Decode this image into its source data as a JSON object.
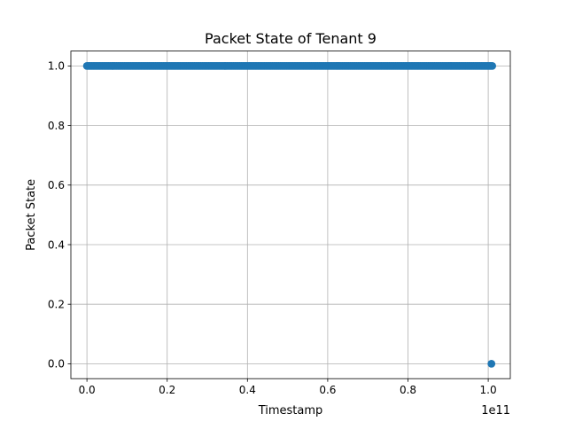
{
  "chart_data": {
    "type": "scatter",
    "title": "Packet State of Tenant 9",
    "xlabel": "Timestamp",
    "ylabel": "Packet State",
    "x_offset_label": "1e11",
    "x_scale": 100000000000,
    "xlim": [
      -4000000000,
      105500000000
    ],
    "ylim": [
      -0.05,
      1.05
    ],
    "x_ticks": [
      0,
      20000000000,
      40000000000,
      60000000000,
      80000000000,
      100000000000
    ],
    "x_tick_labels": [
      "0.0",
      "0.2",
      "0.4",
      "0.6",
      "0.8",
      "1.0"
    ],
    "y_ticks": [
      0.0,
      0.2,
      0.4,
      0.6,
      0.8,
      1.0
    ],
    "y_tick_labels": [
      "0.0",
      "0.2",
      "0.4",
      "0.6",
      "0.8",
      "1.0"
    ],
    "grid": true,
    "color": "#1f77b4",
    "series": [
      {
        "name": "",
        "x_range": [
          0,
          101000000000
        ],
        "y": 1.0,
        "note": "dense continuous run of points"
      },
      {
        "name": "",
        "x": [
          100800000000
        ],
        "y": [
          0.0
        ]
      }
    ]
  }
}
